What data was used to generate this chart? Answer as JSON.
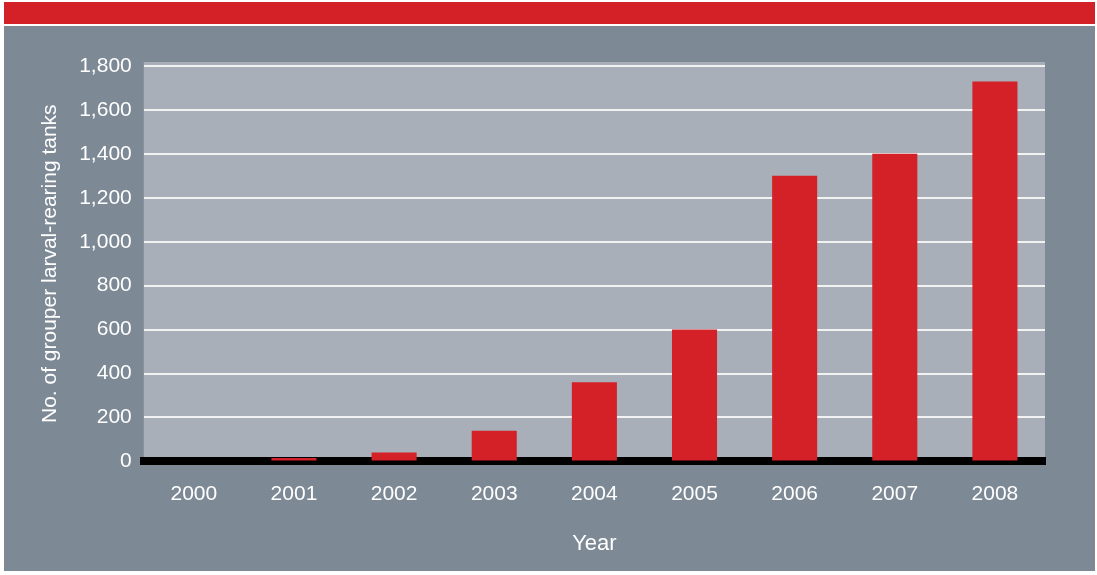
{
  "chart_data": {
    "type": "bar",
    "xlabel": "Year",
    "ylabel": "No. of grouper larval-rearing tanks",
    "categories": [
      "2000",
      "2001",
      "2002",
      "2003",
      "2004",
      "2005",
      "2006",
      "2007",
      "2008"
    ],
    "values": [
      0,
      15,
      40,
      140,
      360,
      600,
      1300,
      1400,
      1730
    ],
    "color": "#d42027",
    "ylim": [
      0,
      1800
    ],
    "yticks": [
      0,
      {
        "value": 200,
        "label": "200"
      },
      {
        "value": 400,
        "label": "400"
      },
      {
        "value": 600,
        "label": "600"
      },
      {
        "value": 800,
        "label": "800"
      },
      {
        "value": 1000,
        "label": "1,000"
      },
      {
        "value": 1200,
        "label": "1,200"
      },
      {
        "value": 1400,
        "label": "1,400"
      },
      {
        "value": 1600,
        "label": "1,600"
      },
      {
        "value": 1800,
        "label": "1,800"
      }
    ],
    "grid": "y"
  }
}
